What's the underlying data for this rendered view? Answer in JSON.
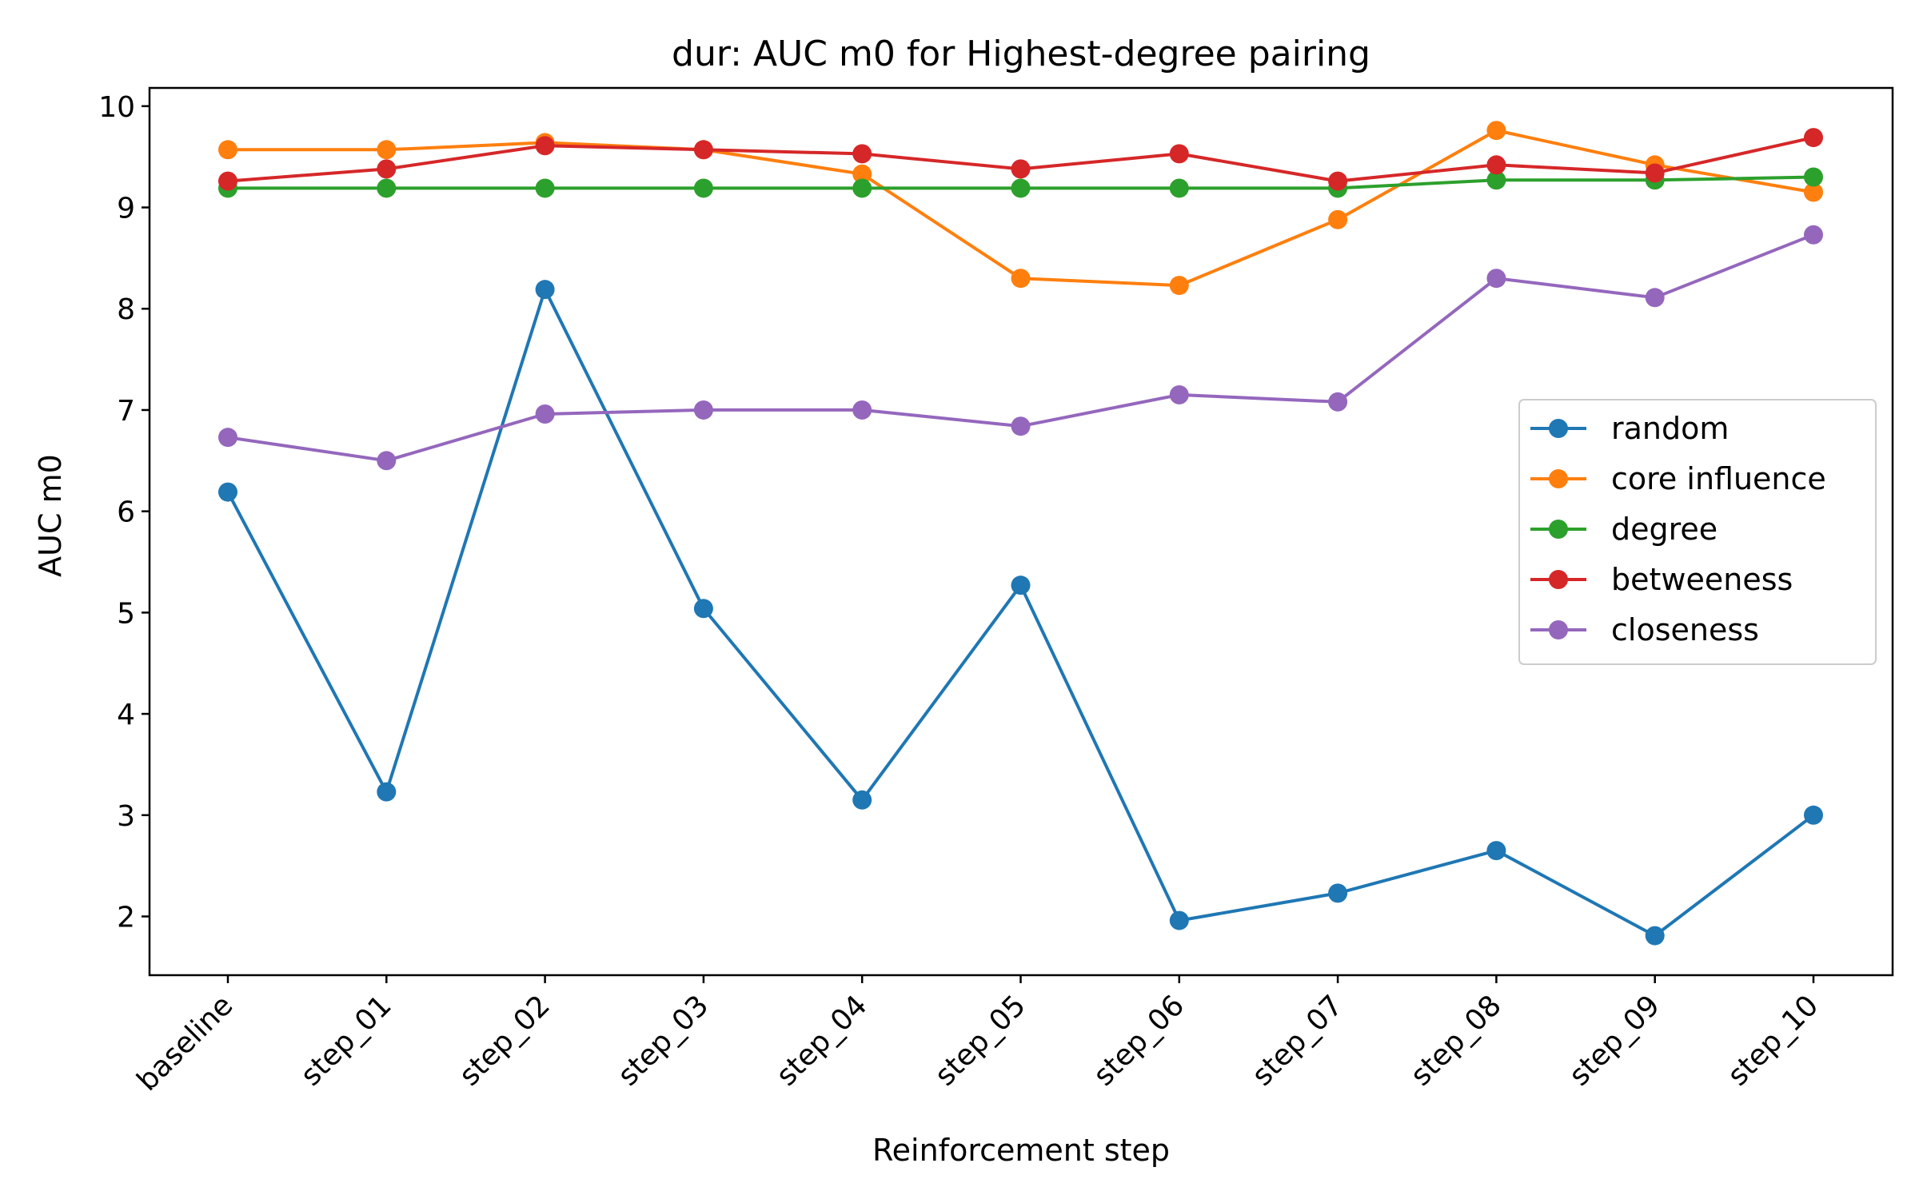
{
  "chart_data": {
    "type": "line",
    "title": "dur: AUC m0 for Highest-degree pairing",
    "xlabel": "Reinforcement step",
    "ylabel": "AUC m0",
    "categories": [
      "baseline",
      "step_01",
      "step_02",
      "step_03",
      "step_04",
      "step_05",
      "step_06",
      "step_07",
      "step_08",
      "step_09",
      "step_10"
    ],
    "yticks": [
      2,
      3,
      4,
      5,
      6,
      7,
      8,
      9,
      10
    ],
    "ylim": [
      1.42,
      10.18
    ],
    "grid": false,
    "legend_position": "center-right",
    "series": [
      {
        "name": "random",
        "color": "#1f77b4",
        "values": [
          6.19,
          3.23,
          8.19,
          5.04,
          3.15,
          5.27,
          1.96,
          2.23,
          2.65,
          1.81,
          3.0
        ]
      },
      {
        "name": "core influence",
        "color": "#ff7f0e",
        "values": [
          9.57,
          9.57,
          9.64,
          9.57,
          9.33,
          8.3,
          8.23,
          8.88,
          9.76,
          9.42,
          9.15
        ]
      },
      {
        "name": "degree",
        "color": "#2ca02c",
        "values": [
          9.19,
          9.19,
          9.19,
          9.19,
          9.19,
          9.19,
          9.19,
          9.19,
          9.27,
          9.27,
          9.3
        ]
      },
      {
        "name": "betweeness",
        "color": "#d62728",
        "values": [
          9.26,
          9.38,
          9.61,
          9.57,
          9.53,
          9.38,
          9.53,
          9.26,
          9.42,
          9.34,
          9.69
        ]
      },
      {
        "name": "closeness",
        "color": "#9467bd",
        "values": [
          6.73,
          6.5,
          6.96,
          7.0,
          7.0,
          6.84,
          7.15,
          7.08,
          8.3,
          8.11,
          8.73
        ]
      }
    ]
  }
}
